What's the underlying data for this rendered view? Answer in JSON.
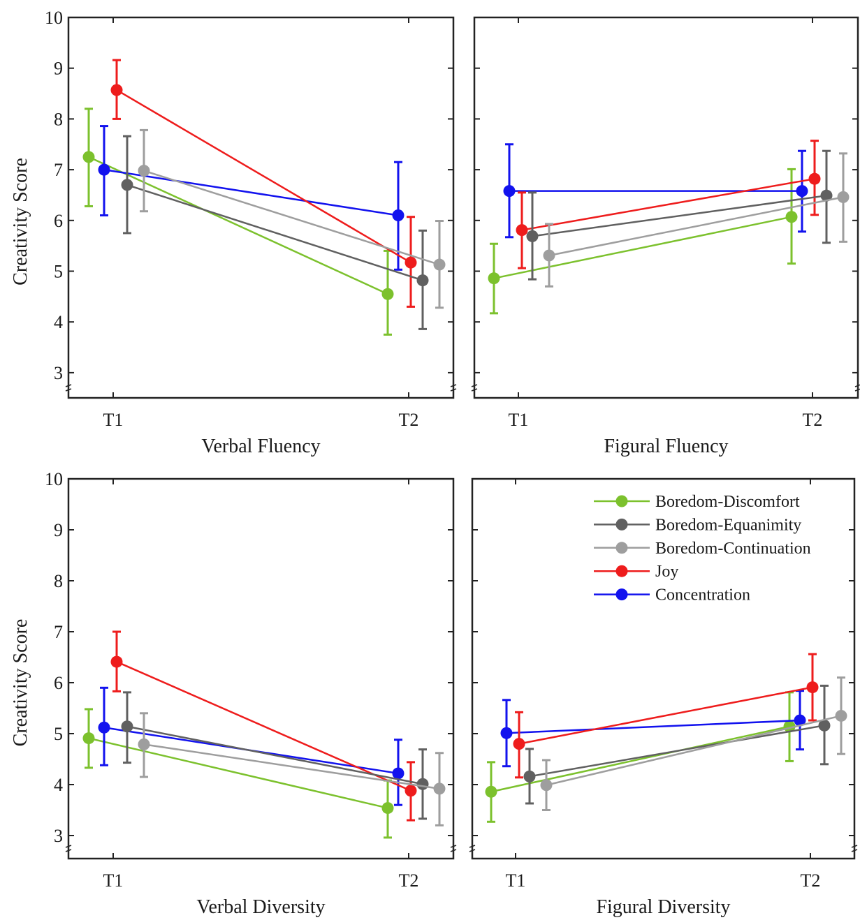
{
  "figure": {
    "ylabel": "Creativity Score",
    "colors": {
      "Boredom-Discomfort": "#7cc12d",
      "Boredom-Equanimity": "#606060",
      "Boredom-Continuation": "#9e9e9e",
      "Joy": "#ee1c1c",
      "Concentration": "#1212ee"
    }
  },
  "chart_data": [
    {
      "type": "line",
      "xlabel": "Verbal Fluency",
      "ylabel": "Creativity Score",
      "categories": [
        "T1",
        "T2"
      ],
      "ylim": [
        2.6,
        10
      ],
      "yticks": [
        3,
        4,
        5,
        6,
        7,
        8,
        9,
        10
      ],
      "legend": false,
      "series": [
        {
          "name": "Boredom-Discomfort",
          "values": [
            7.25,
            4.55
          ],
          "lower": [
            6.28,
            3.75
          ],
          "upper": [
            8.2,
            5.4
          ]
        },
        {
          "name": "Concentration",
          "values": [
            7.0,
            6.1
          ],
          "lower": [
            6.1,
            5.03
          ],
          "upper": [
            7.86,
            7.15
          ]
        },
        {
          "name": "Joy",
          "values": [
            8.57,
            5.17
          ],
          "lower": [
            8.0,
            4.3
          ],
          "upper": [
            9.16,
            6.07
          ]
        },
        {
          "name": "Boredom-Equanimity",
          "values": [
            6.7,
            4.82
          ],
          "lower": [
            5.75,
            3.86
          ],
          "upper": [
            7.66,
            5.8
          ]
        },
        {
          "name": "Boredom-Continuation",
          "values": [
            6.98,
            5.13
          ],
          "lower": [
            6.18,
            4.28
          ],
          "upper": [
            7.78,
            5.99
          ]
        }
      ]
    },
    {
      "type": "line",
      "xlabel": "Figural Fluency",
      "ylabel": "",
      "categories": [
        "T1",
        "T2"
      ],
      "ylim": [
        2.6,
        10
      ],
      "yticks": [
        3,
        4,
        5,
        6,
        7,
        8,
        9,
        10
      ],
      "legend": false,
      "series": [
        {
          "name": "Boredom-Discomfort",
          "values": [
            4.86,
            6.07
          ],
          "lower": [
            4.17,
            5.15
          ],
          "upper": [
            5.54,
            7.01
          ]
        },
        {
          "name": "Concentration",
          "values": [
            6.58,
            6.58
          ],
          "lower": [
            5.67,
            5.78
          ],
          "upper": [
            7.5,
            7.37
          ]
        },
        {
          "name": "Joy",
          "values": [
            5.81,
            6.82
          ],
          "lower": [
            5.06,
            6.11
          ],
          "upper": [
            6.55,
            7.57
          ]
        },
        {
          "name": "Boredom-Equanimity",
          "values": [
            5.69,
            6.49
          ],
          "lower": [
            4.84,
            5.56
          ],
          "upper": [
            6.55,
            7.37
          ]
        },
        {
          "name": "Boredom-Continuation",
          "values": [
            5.31,
            6.46
          ],
          "lower": [
            4.7,
            5.58
          ],
          "upper": [
            5.93,
            7.32
          ]
        }
      ]
    },
    {
      "type": "line",
      "xlabel": "Verbal Diversity",
      "ylabel": "Creativity Score",
      "categories": [
        "T1",
        "T2"
      ],
      "ylim": [
        2.6,
        10
      ],
      "yticks": [
        3,
        4,
        5,
        6,
        7,
        8,
        9,
        10
      ],
      "legend": false,
      "series": [
        {
          "name": "Boredom-Discomfort",
          "values": [
            4.91,
            3.54
          ],
          "lower": [
            4.33,
            2.96
          ],
          "upper": [
            5.48,
            4.08
          ]
        },
        {
          "name": "Concentration",
          "values": [
            5.12,
            4.22
          ],
          "lower": [
            4.38,
            3.6
          ],
          "upper": [
            5.9,
            4.88
          ]
        },
        {
          "name": "Joy",
          "values": [
            6.41,
            3.88
          ],
          "lower": [
            5.83,
            3.3
          ],
          "upper": [
            7.0,
            4.44
          ]
        },
        {
          "name": "Boredom-Equanimity",
          "values": [
            5.14,
            4.01
          ],
          "lower": [
            4.43,
            3.33
          ],
          "upper": [
            5.81,
            4.69
          ]
        },
        {
          "name": "Boredom-Continuation",
          "values": [
            4.79,
            3.92
          ],
          "lower": [
            4.15,
            3.2
          ],
          "upper": [
            5.4,
            4.62
          ]
        }
      ]
    },
    {
      "type": "line",
      "xlabel": "Figural Diversity",
      "ylabel": "",
      "categories": [
        "T1",
        "T2"
      ],
      "ylim": [
        2.6,
        10
      ],
      "yticks": [
        3,
        4,
        5,
        6,
        7,
        8,
        9,
        10
      ],
      "legend": true,
      "legend_position": "top-right",
      "series": [
        {
          "name": "Boredom-Discomfort",
          "values": [
            3.86,
            5.14
          ],
          "lower": [
            3.27,
            4.46
          ],
          "upper": [
            4.44,
            5.81
          ]
        },
        {
          "name": "Concentration",
          "values": [
            5.01,
            5.26
          ],
          "lower": [
            4.36,
            4.69
          ],
          "upper": [
            5.66,
            5.84
          ]
        },
        {
          "name": "Joy",
          "values": [
            4.8,
            5.91
          ],
          "lower": [
            4.14,
            5.26
          ],
          "upper": [
            5.42,
            6.56
          ]
        },
        {
          "name": "Boredom-Equanimity",
          "values": [
            4.16,
            5.16
          ],
          "lower": [
            3.63,
            4.4
          ],
          "upper": [
            4.7,
            5.94
          ]
        },
        {
          "name": "Boredom-Continuation",
          "values": [
            3.99,
            5.35
          ],
          "lower": [
            3.5,
            4.6
          ],
          "upper": [
            4.48,
            6.1
          ]
        }
      ]
    }
  ]
}
